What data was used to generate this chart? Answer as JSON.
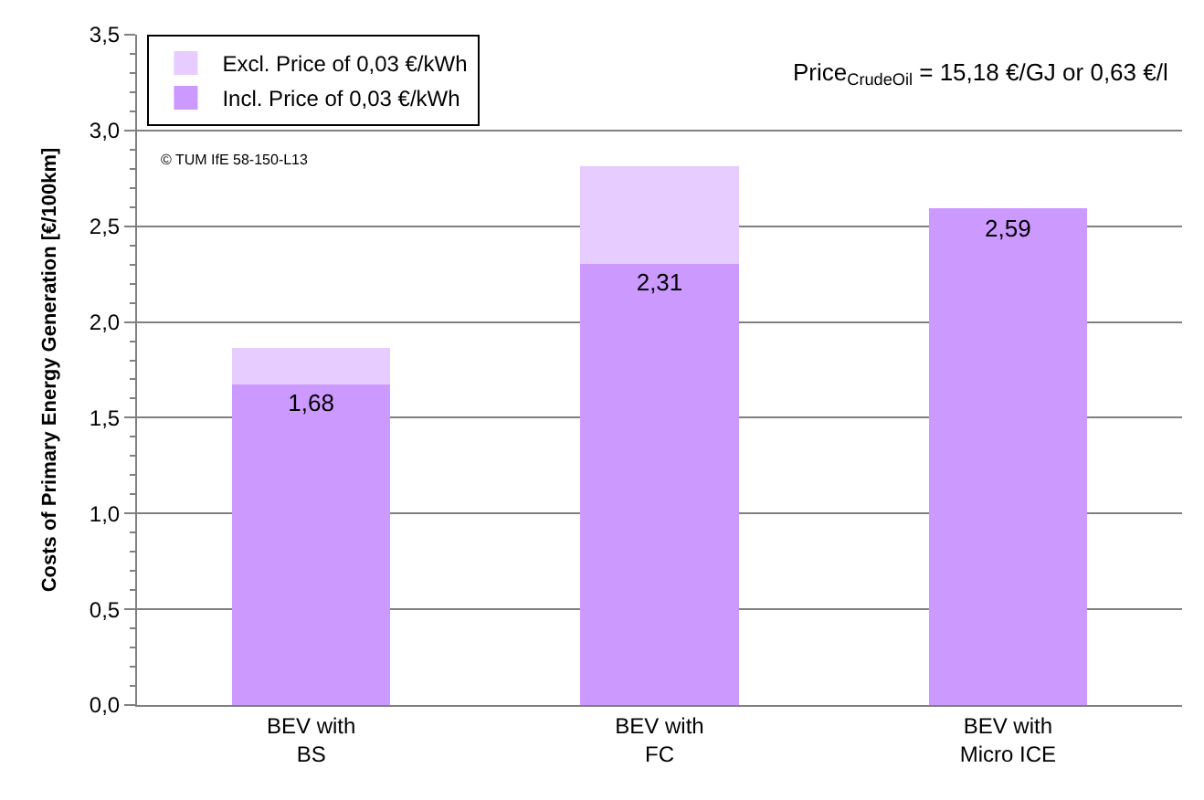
{
  "chart_data": {
    "type": "bar",
    "stacked": true,
    "ylabel": "Costs of Primary Energy Generation [€/100km]",
    "categories": [
      "BEV with BS",
      "BEV with FC",
      "BEV with Micro ICE"
    ],
    "series": [
      {
        "name": "Incl. Price of 0,03 €/kWh",
        "color": "#cc99ff",
        "values": [
          1.68,
          2.31,
          2.59
        ],
        "value_labels": [
          "1,68",
          "2,31",
          "2,59"
        ]
      },
      {
        "name": "Excl. Price of 0,03 €/kWh",
        "color": "#e6ccff",
        "values": [
          0.18,
          0.5,
          null
        ]
      }
    ],
    "ylim": [
      0,
      3.5
    ],
    "yticks": [
      {
        "value": 0,
        "label": "0,0"
      },
      {
        "value": 0.5,
        "label": "0,5"
      },
      {
        "value": 1,
        "label": "1,0"
      },
      {
        "value": 1.5,
        "label": "1,5"
      },
      {
        "value": 2,
        "label": "2,0"
      },
      {
        "value": 2.5,
        "label": "2,5"
      },
      {
        "value": 3,
        "label": "3,0"
      },
      {
        "value": 3.5,
        "label": "3,5"
      }
    ],
    "grid": "y",
    "legend": "top left",
    "annotations": [
      "Price$_{CrudeOil}$ = 15,18 €/GJ or 0,63 €/l",
      "© TUM IfE 58-150-L13"
    ]
  }
}
